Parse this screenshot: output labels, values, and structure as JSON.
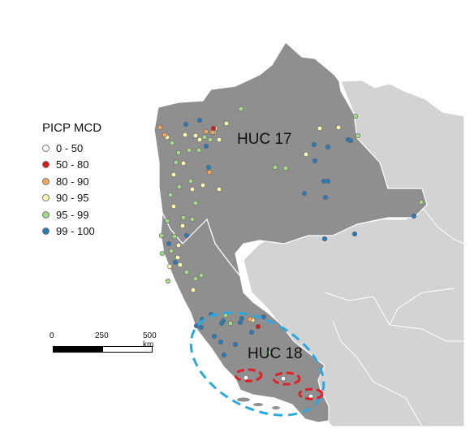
{
  "legend": {
    "title": "PICP MCD",
    "classes": [
      {
        "label": "0 - 50",
        "color": "#ffffff"
      },
      {
        "label": "50 - 80",
        "color": "#d7191c"
      },
      {
        "label": "80 - 90",
        "color": "#f5a55a"
      },
      {
        "label": "90 - 95",
        "color": "#fbfbb0"
      },
      {
        "label": "95 - 99",
        "color": "#a3d988"
      },
      {
        "label": "99 - 100",
        "color": "#2a7ab8"
      }
    ]
  },
  "regions": {
    "huc17": "HUC 17",
    "huc18": "HUC 18"
  },
  "scale_bar": {
    "ticks": [
      "0",
      "250",
      "500 km"
    ]
  },
  "colors": {
    "region_fill": "#8f8f8f",
    "neighbor_fill": "#d3d3d3",
    "border": "#ffffff",
    "highlight_blue": "#29a9e0",
    "highlight_red": "#e21f26"
  }
}
